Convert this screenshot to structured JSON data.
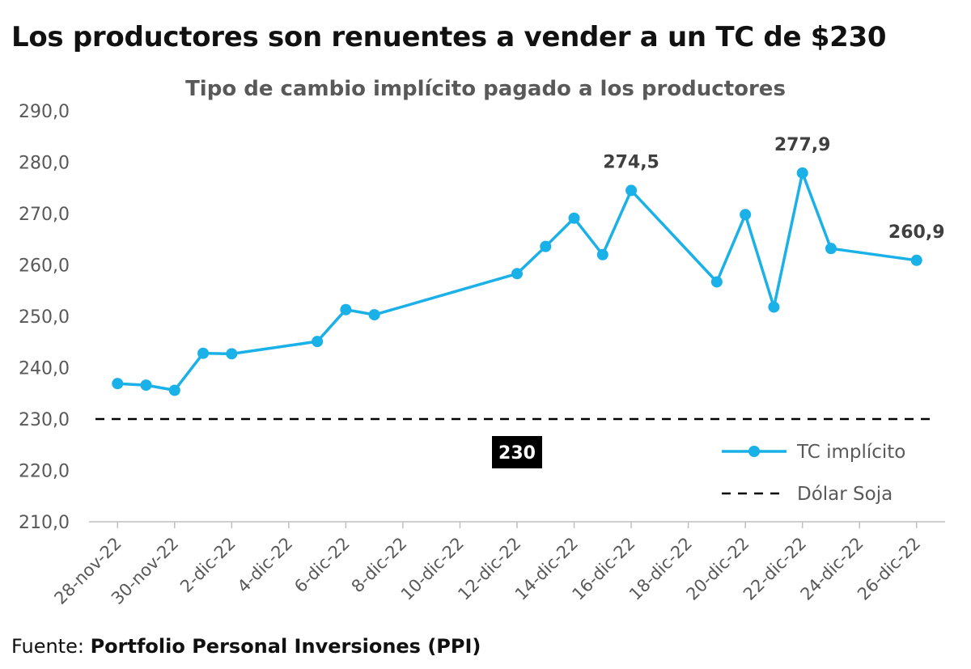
{
  "headline": "Los productores son renuentes a vender a un TC de $230",
  "source": {
    "prefix": "Fuente:",
    "name": "Portfolio Personal Inversiones (PPI)"
  },
  "colors": {
    "series_line": "#1AB0E8",
    "reference_line": "#000000",
    "axis": "#bfbfbf",
    "text": "#595959"
  },
  "chart_data": {
    "type": "line",
    "title": "Tipo de cambio implícito pagado a los productores",
    "x_axis": {
      "type": "date",
      "range": [
        "2022-11-27",
        "2022-12-27"
      ],
      "tick_labels": [
        "28-nov-22",
        "30-nov-22",
        "2-dic-22",
        "4-dic-22",
        "6-dic-22",
        "8-dic-22",
        "10-dic-22",
        "12-dic-22",
        "14-dic-22",
        "16-dic-22",
        "18-dic-22",
        "20-dic-22",
        "22-dic-22",
        "24-dic-22",
        "26-dic-22"
      ],
      "tick_dates": [
        "2022-11-28",
        "2022-11-30",
        "2022-12-02",
        "2022-12-04",
        "2022-12-06",
        "2022-12-08",
        "2022-12-10",
        "2022-12-12",
        "2022-12-14",
        "2022-12-16",
        "2022-12-18",
        "2022-12-20",
        "2022-12-22",
        "2022-12-24",
        "2022-12-26"
      ]
    },
    "y_axis": {
      "range": [
        210,
        290
      ],
      "tick_values": [
        210,
        220,
        230,
        240,
        250,
        260,
        270,
        280,
        290
      ],
      "tick_labels": [
        "210,0",
        "220,0",
        "230,0",
        "240,0",
        "250,0",
        "260,0",
        "270,0",
        "280,0",
        "290,0"
      ]
    },
    "grid": false,
    "legend_position": "bottom-right",
    "series": [
      {
        "name": "TC implícito",
        "color": "#1AB0E8",
        "style": "line-markers",
        "points": [
          {
            "x": "2022-11-28",
            "y": 236.9
          },
          {
            "x": "2022-11-29",
            "y": 236.6
          },
          {
            "x": "2022-11-30",
            "y": 235.6
          },
          {
            "x": "2022-12-01",
            "y": 242.8
          },
          {
            "x": "2022-12-02",
            "y": 242.7
          },
          {
            "x": "2022-12-05",
            "y": 245.1
          },
          {
            "x": "2022-12-06",
            "y": 251.3
          },
          {
            "x": "2022-12-07",
            "y": 250.3
          },
          {
            "x": "2022-12-12",
            "y": 258.3
          },
          {
            "x": "2022-12-13",
            "y": 263.6
          },
          {
            "x": "2022-12-14",
            "y": 269.1
          },
          {
            "x": "2022-12-15",
            "y": 262.0
          },
          {
            "x": "2022-12-16",
            "y": 274.5
          },
          {
            "x": "2022-12-19",
            "y": 256.7
          },
          {
            "x": "2022-12-20",
            "y": 269.8
          },
          {
            "x": "2022-12-21",
            "y": 251.8
          },
          {
            "x": "2022-12-22",
            "y": 277.9
          },
          {
            "x": "2022-12-23",
            "y": 263.2
          },
          {
            "x": "2022-12-26",
            "y": 260.9
          }
        ]
      },
      {
        "name": "Dólar Soja",
        "color": "#000000",
        "style": "dashed",
        "value": 230
      }
    ],
    "annotations": [
      {
        "x": "2022-12-16",
        "text": "274,5"
      },
      {
        "x": "2022-12-22",
        "text": "277,9"
      },
      {
        "x": "2022-12-26",
        "text": "260,9"
      }
    ],
    "reference_label": {
      "x": "2022-12-12",
      "text": "230"
    }
  }
}
